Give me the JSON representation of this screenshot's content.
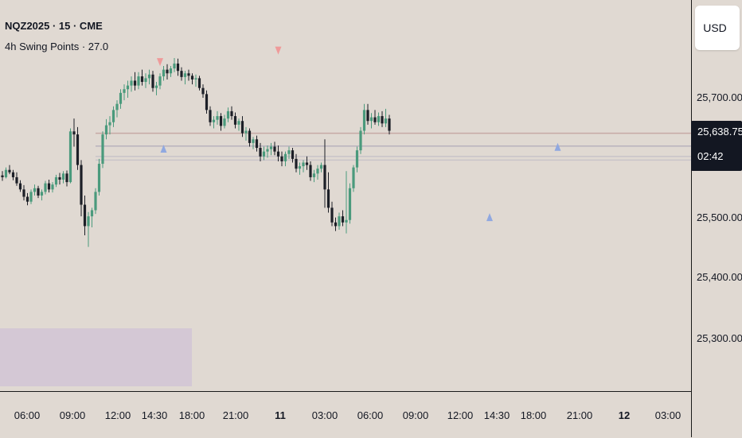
{
  "legend": {
    "symbol": "NQZ2025 · 15 · CME",
    "indicator": "4h Swing Points · 27.0"
  },
  "price_axis": {
    "currency_button": "USD",
    "labels": [
      "25,700.00",
      "25,500.00",
      "25,400.00",
      "25,300.00"
    ],
    "last_price": "25,638.75",
    "countdown": "02:42"
  },
  "time_axis": {
    "labels": [
      {
        "text": "06:00",
        "bold": false
      },
      {
        "text": "09:00",
        "bold": false
      },
      {
        "text": "12:00",
        "bold": false
      },
      {
        "text": "14:30",
        "bold": false
      },
      {
        "text": "18:00",
        "bold": false
      },
      {
        "text": "21:00",
        "bold": false
      },
      {
        "text": "11",
        "bold": true
      },
      {
        "text": "03:00",
        "bold": false
      },
      {
        "text": "06:00",
        "bold": false
      },
      {
        "text": "09:00",
        "bold": false
      },
      {
        "text": "12:00",
        "bold": false
      },
      {
        "text": "14:30",
        "bold": false
      },
      {
        "text": "18:00",
        "bold": false
      },
      {
        "text": "21:00",
        "bold": false
      },
      {
        "text": "12",
        "bold": true
      },
      {
        "text": "03:00",
        "bold": false
      }
    ]
  },
  "colors": {
    "background": "#e0d9d2",
    "up_candle": "#4a9a7c",
    "down_candle": "#1c1f27",
    "swing_high_marker": "#ef9a9a",
    "swing_low_marker": "#90a8e0",
    "range_box": "#d1c4d6"
  },
  "chart_data": {
    "type": "candlestick",
    "symbol": "NQZ2025",
    "interval": "15",
    "exchange": "CME",
    "y_axis": {
      "min": 25220,
      "max": 25860
    },
    "last_price": 25638.75,
    "candles": [
      [
        25573,
        25580,
        25564,
        25570
      ],
      [
        25570,
        25586,
        25568,
        25582
      ],
      [
        25582,
        25590,
        25575,
        25578
      ],
      [
        25578,
        25582,
        25565,
        25570
      ],
      [
        25570,
        25578,
        25556,
        25560
      ],
      [
        25560,
        25565,
        25546,
        25550
      ],
      [
        25550,
        25557,
        25532,
        25538
      ],
      [
        25538,
        25544,
        25524,
        25530
      ],
      [
        25530,
        25550,
        25526,
        25546
      ],
      [
        25546,
        25558,
        25540,
        25552
      ],
      [
        25552,
        25556,
        25536,
        25540
      ],
      [
        25540,
        25550,
        25532,
        25546
      ],
      [
        25546,
        25564,
        25542,
        25560
      ],
      [
        25560,
        25566,
        25545,
        25550
      ],
      [
        25550,
        25562,
        25545,
        25558
      ],
      [
        25558,
        25574,
        25554,
        25570
      ],
      [
        25570,
        25577,
        25558,
        25566
      ],
      [
        25566,
        25580,
        25560,
        25576
      ],
      [
        25576,
        25581,
        25555,
        25562
      ],
      [
        25562,
        25650,
        25560,
        25645
      ],
      [
        25645,
        25666,
        25620,
        25640
      ],
      [
        25640,
        25652,
        25582,
        25590
      ],
      [
        25590,
        25598,
        25506,
        25525
      ],
      [
        25525,
        25540,
        25475,
        25490
      ],
      [
        25490,
        25513,
        25456,
        25506
      ],
      [
        25506,
        25520,
        25488,
        25516
      ],
      [
        25516,
        25552,
        25510,
        25546
      ],
      [
        25546,
        25600,
        25540,
        25592
      ],
      [
        25592,
        25645,
        25585,
        25640
      ],
      [
        25640,
        25665,
        25632,
        25655
      ],
      [
        25655,
        25670,
        25640,
        25660
      ],
      [
        25660,
        25686,
        25652,
        25680
      ],
      [
        25680,
        25696,
        25668,
        25690
      ],
      [
        25690,
        25714,
        25682,
        25708
      ],
      [
        25708,
        25722,
        25696,
        25714
      ],
      [
        25714,
        25728,
        25700,
        25720
      ],
      [
        25720,
        25735,
        25710,
        25728
      ],
      [
        25728,
        25742,
        25712,
        25720
      ],
      [
        25720,
        25742,
        25714,
        25735
      ],
      [
        25735,
        25746,
        25720,
        25726
      ],
      [
        25726,
        25740,
        25716,
        25732
      ],
      [
        25732,
        25746,
        25722,
        25738
      ],
      [
        25738,
        25744,
        25710,
        25716
      ],
      [
        25716,
        25726,
        25704,
        25720
      ],
      [
        25720,
        25740,
        25714,
        25735
      ],
      [
        25735,
        25752,
        25728,
        25746
      ],
      [
        25746,
        25755,
        25730,
        25740
      ],
      [
        25740,
        25752,
        25734,
        25748
      ],
      [
        25748,
        25765,
        25742,
        25756
      ],
      [
        25756,
        25764,
        25736,
        25744
      ],
      [
        25744,
        25750,
        25728,
        25734
      ],
      [
        25734,
        25744,
        25722,
        25740
      ],
      [
        25740,
        25746,
        25728,
        25736
      ],
      [
        25736,
        25740,
        25722,
        25730
      ],
      [
        25730,
        25738,
        25718,
        25732
      ],
      [
        25732,
        25736,
        25712,
        25716
      ],
      [
        25716,
        25722,
        25700,
        25706
      ],
      [
        25706,
        25712,
        25674,
        25680
      ],
      [
        25680,
        25686,
        25654,
        25660
      ],
      [
        25660,
        25670,
        25650,
        25664
      ],
      [
        25664,
        25678,
        25656,
        25670
      ],
      [
        25670,
        25675,
        25646,
        25654
      ],
      [
        25654,
        25672,
        25650,
        25666
      ],
      [
        25666,
        25684,
        25660,
        25678
      ],
      [
        25678,
        25686,
        25664,
        25670
      ],
      [
        25670,
        25676,
        25650,
        25656
      ],
      [
        25656,
        25666,
        25646,
        25662
      ],
      [
        25662,
        25670,
        25636,
        25642
      ],
      [
        25642,
        25652,
        25630,
        25646
      ],
      [
        25646,
        25650,
        25620,
        25626
      ],
      [
        25626,
        25636,
        25616,
        25632
      ],
      [
        25632,
        25638,
        25612,
        25618
      ],
      [
        25618,
        25626,
        25596,
        25604
      ],
      [
        25604,
        25620,
        25598,
        25612
      ],
      [
        25612,
        25622,
        25602,
        25616
      ],
      [
        25616,
        25626,
        25606,
        25620
      ],
      [
        25620,
        25628,
        25606,
        25612
      ],
      [
        25612,
        25622,
        25596,
        25604
      ],
      [
        25604,
        25612,
        25588,
        25596
      ],
      [
        25596,
        25612,
        25588,
        25608
      ],
      [
        25608,
        25620,
        25600,
        25614
      ],
      [
        25614,
        25618,
        25594,
        25600
      ],
      [
        25600,
        25608,
        25578,
        25584
      ],
      [
        25584,
        25594,
        25574,
        25588
      ],
      [
        25588,
        25598,
        25578,
        25594
      ],
      [
        25594,
        25604,
        25582,
        25590
      ],
      [
        25590,
        25596,
        25564,
        25570
      ],
      [
        25570,
        25582,
        25562,
        25576
      ],
      [
        25576,
        25590,
        25566,
        25584
      ],
      [
        25584,
        25594,
        25578,
        25590
      ],
      [
        25590,
        25632,
        25520,
        25550
      ],
      [
        25550,
        25578,
        25512,
        25520
      ],
      [
        25520,
        25530,
        25490,
        25496
      ],
      [
        25496,
        25504,
        25482,
        25490
      ],
      [
        25490,
        25512,
        25484,
        25506
      ],
      [
        25506,
        25516,
        25490,
        25496
      ],
      [
        25496,
        25580,
        25478,
        25500
      ],
      [
        25500,
        25560,
        25494,
        25552
      ],
      [
        25552,
        25590,
        25546,
        25586
      ],
      [
        25586,
        25620,
        25578,
        25614
      ],
      [
        25614,
        25652,
        25608,
        25646
      ],
      [
        25646,
        25690,
        25640,
        25680
      ],
      [
        25680,
        25690,
        25656,
        25662
      ],
      [
        25662,
        25675,
        25650,
        25668
      ],
      [
        25668,
        25680,
        25656,
        25660
      ],
      [
        25660,
        25676,
        25654,
        25670
      ],
      [
        25670,
        25678,
        25652,
        25658
      ],
      [
        25658,
        25682,
        25652,
        25666
      ],
      [
        25666,
        25672,
        25640,
        25646
      ]
    ],
    "swing_highs": [
      {
        "candle": 44,
        "price": 25757
      },
      {
        "candle": 77,
        "price": 25776
      }
    ],
    "swing_lows": [
      {
        "candle": 45,
        "price": 25618
      },
      {
        "candle": 136,
        "price": 25506
      },
      {
        "candle": 155,
        "price": 25621
      }
    ],
    "horizontal_levels": [
      {
        "price": 25642,
        "color": "#c7a9a5"
      },
      {
        "price": 25621,
        "color": "#b8b2bd"
      },
      {
        "price": 25604,
        "color": "#c9c4c9"
      },
      {
        "price": 25598,
        "color": "#c9c4c9"
      }
    ]
  }
}
